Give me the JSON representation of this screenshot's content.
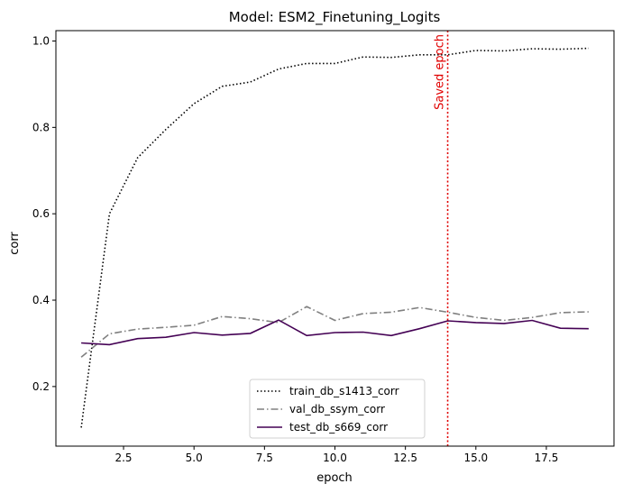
{
  "chart_data": {
    "type": "line",
    "title": "Model: ESM2_Finetuning_Logits",
    "xlabel": "epoch",
    "ylabel": "corr",
    "xlim": [
      0.1,
      19.9
    ],
    "ylim": [
      0.062,
      1.024
    ],
    "xticks": [
      2.5,
      5.0,
      7.5,
      10.0,
      12.5,
      15.0,
      17.5
    ],
    "xtick_labels": [
      "2.5",
      "5.0",
      "7.5",
      "10.0",
      "12.5",
      "15.0",
      "17.5"
    ],
    "yticks": [
      0.2,
      0.4,
      0.6,
      0.8,
      1.0
    ],
    "ytick_labels": [
      "0.2",
      "0.4",
      "0.6",
      "0.8",
      "1.0"
    ],
    "grid": false,
    "legend_position": "lower-center",
    "x": [
      1,
      2,
      3,
      4,
      5,
      6,
      7,
      8,
      9,
      10,
      11,
      12,
      13,
      14,
      15,
      16,
      17,
      18,
      19
    ],
    "series": [
      {
        "name": "train_db_s1413_corr",
        "color": "#000000",
        "style": "dotted",
        "values": [
          0.105,
          0.6,
          0.73,
          0.795,
          0.855,
          0.895,
          0.905,
          0.935,
          0.948,
          0.948,
          0.963,
          0.962,
          0.968,
          0.968,
          0.978,
          0.977,
          0.982,
          0.981,
          0.983
        ]
      },
      {
        "name": "val_db_ssym_corr",
        "color": "#808080",
        "style": "dashdot",
        "values": [
          0.268,
          0.322,
          0.333,
          0.337,
          0.342,
          0.362,
          0.357,
          0.348,
          0.385,
          0.353,
          0.369,
          0.372,
          0.383,
          0.372,
          0.36,
          0.353,
          0.36,
          0.371,
          0.373
        ]
      },
      {
        "name": "test_db_s669_corr",
        "color": "#440154",
        "style": "solid",
        "values": [
          0.301,
          0.297,
          0.311,
          0.314,
          0.325,
          0.319,
          0.323,
          0.354,
          0.318,
          0.325,
          0.326,
          0.318,
          0.334,
          0.352,
          0.348,
          0.346,
          0.353,
          0.335,
          0.334
        ]
      }
    ],
    "vline": {
      "x": 14,
      "label": "Saved epoch",
      "color": "#e00000"
    }
  }
}
